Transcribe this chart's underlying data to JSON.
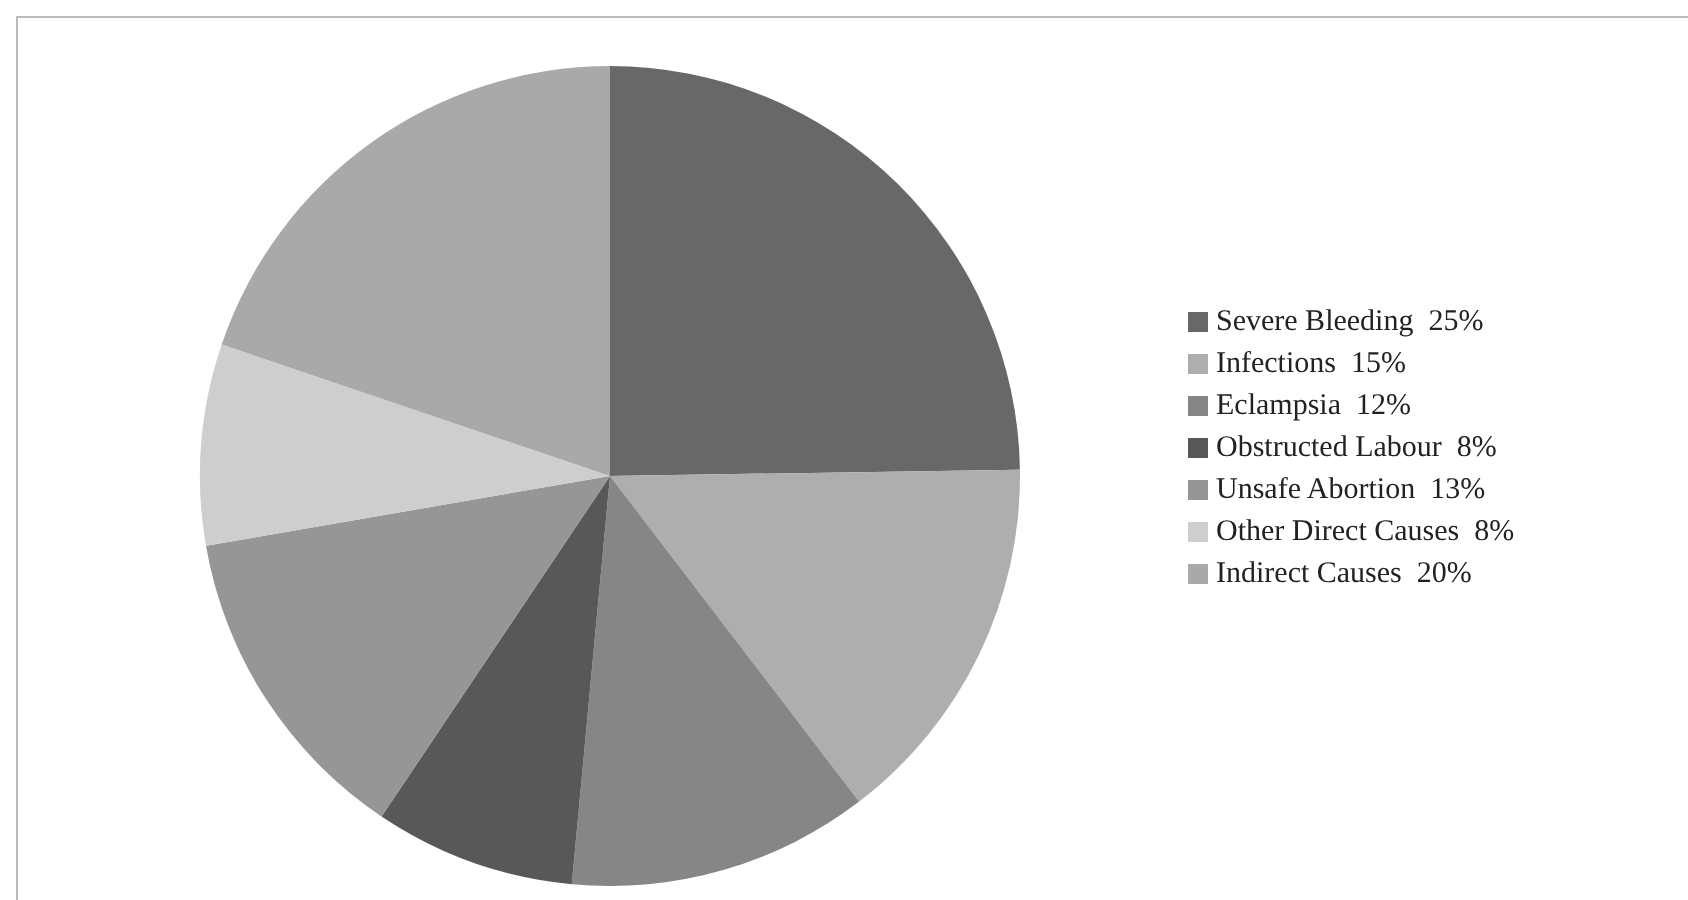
{
  "chart_data": {
    "type": "pie",
    "categories": [
      "Severe Bleeding  25%",
      "Infections  15%",
      "Eclampsia  12%",
      "Obstructed Labour  8%",
      "Unsafe Abortion  13%",
      "Other Direct Causes  8%",
      "Indirect Causes  20%"
    ],
    "values": [
      25,
      15,
      12,
      8,
      13,
      8,
      20
    ],
    "colors": [
      "#686868",
      "#aeaeae",
      "#868686",
      "#585858",
      "#969696",
      "#cecece",
      "#a9a9a9"
    ],
    "legend": "right"
  }
}
